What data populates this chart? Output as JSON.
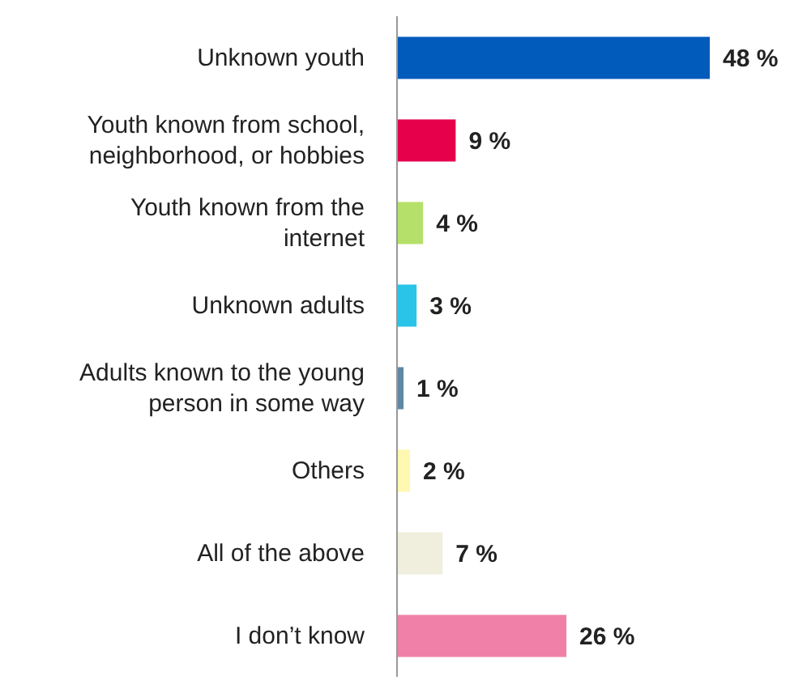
{
  "chart_data": {
    "type": "bar",
    "orientation": "horizontal",
    "categories": [
      "Unknown youth",
      "Youth known from school, neighborhood, or hobbies",
      "Youth known from the internet",
      "Unknown adults",
      "Adults known to the young person in some way",
      "Others",
      "All of the above",
      "I don’t know"
    ],
    "values": [
      48,
      9,
      4,
      3,
      1,
      2,
      7,
      26
    ],
    "colors": [
      "#005bbb",
      "#e6004c",
      "#b5e06a",
      "#29c4e8",
      "#5f87a6",
      "#fff8b0",
      "#f0eedc",
      "#f080a8"
    ],
    "value_labels": [
      "48 %",
      "9 %",
      "4 %",
      "3 %",
      "1 %",
      "2 %",
      "7 %",
      "26 %"
    ],
    "tick_labels": "y"
  }
}
